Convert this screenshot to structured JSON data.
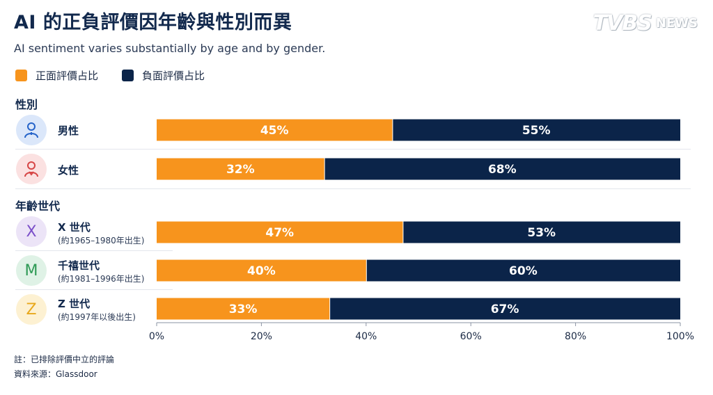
{
  "header": {
    "title": "AI 的正負評價因年齡與性別而異",
    "subtitle": "AI sentiment varies substantially by age and by gender."
  },
  "logo": {
    "main": "TVBS",
    "sub": "NEWS"
  },
  "legend": [
    {
      "label": "正面評價占比",
      "color": "#f7941d"
    },
    {
      "label": "負面評價占比",
      "color": "#0b2449"
    }
  ],
  "sections": {
    "gender": "性別",
    "generation": "年齡世代"
  },
  "rows": {
    "male": {
      "label": "男性",
      "icon": "male-user-icon"
    },
    "female": {
      "label": "女性",
      "icon": "female-user-icon"
    },
    "genx": {
      "letter": "X",
      "label": "X 世代",
      "sub": "(約1965–1980年出生)"
    },
    "millennial": {
      "letter": "M",
      "label": "千禧世代",
      "sub": "(約1981–1996年出生)"
    },
    "genz": {
      "letter": "Z",
      "label": "Z 世代",
      "sub": "(約1997年以後出生)"
    }
  },
  "notes": {
    "note": "註：已排除評價中立的評論",
    "source": "資料來源：Glassdoor"
  },
  "chart_data": {
    "type": "bar",
    "orientation": "horizontal",
    "stacked": true,
    "categories": [
      "男性",
      "女性",
      "X 世代",
      "千禧世代",
      "Z 世代"
    ],
    "series": [
      {
        "name": "正面評價占比",
        "values": [
          45,
          32,
          47,
          40,
          33
        ],
        "color": "#f7941d"
      },
      {
        "name": "負面評價占比",
        "values": [
          55,
          68,
          53,
          60,
          67
        ],
        "color": "#0b2449"
      }
    ],
    "data_labels": [
      [
        "45%",
        "32%",
        "47%",
        "40%",
        "33%"
      ],
      [
        "55%",
        "68%",
        "53%",
        "60%",
        "67%"
      ]
    ],
    "x_ticks": [
      "0%",
      "20%",
      "40%",
      "60%",
      "80%",
      "100%"
    ],
    "xlim": [
      0,
      100
    ],
    "legend_position": "top-left",
    "grid": false
  }
}
